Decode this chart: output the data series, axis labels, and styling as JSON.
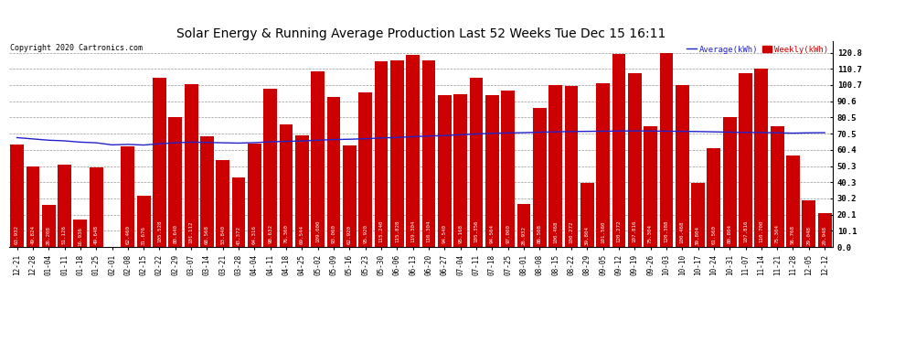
{
  "title": "Solar Energy & Running Average Production Last 52 Weeks Tue Dec 15 16:11",
  "copyright": "Copyright 2020 Cartronics.com",
  "legend_avg": "Average(kWh)",
  "legend_weekly": "Weekly(kWh)",
  "categories": [
    "12-21",
    "12-28",
    "01-04",
    "01-11",
    "01-18",
    "01-25",
    "02-01",
    "02-08",
    "02-15",
    "02-22",
    "02-29",
    "03-07",
    "03-14",
    "03-21",
    "03-28",
    "04-04",
    "04-11",
    "04-18",
    "04-25",
    "05-02",
    "05-09",
    "05-16",
    "05-23",
    "05-30",
    "06-06",
    "06-13",
    "06-20",
    "06-27",
    "07-04",
    "07-11",
    "07-18",
    "07-25",
    "08-01",
    "08-08",
    "08-15",
    "08-22",
    "08-29",
    "09-05",
    "09-12",
    "09-19",
    "09-26",
    "10-03",
    "10-10",
    "10-17",
    "10-24",
    "10-31",
    "11-07",
    "11-14",
    "11-21",
    "11-28",
    "12-05",
    "12-12"
  ],
  "bar_values": [
    63.932,
    49.824,
    26.208,
    51.126,
    16.936,
    49.648,
    0.096,
    62.46,
    31.676,
    105.528,
    80.64,
    101.112,
    68.568,
    53.84,
    43.372,
    64.316,
    98.632,
    76.36,
    69.544,
    109.0,
    93.06,
    62.92,
    95.92,
    115.24,
    115.828,
    119.304,
    116.304,
    94.54,
    95.168,
    105.356,
    94.564,
    97.0,
    26.932,
    86.508,
    100.468,
    100.272,
    39.804,
    101.56,
    120.272,
    107.816,
    75.304,
    120.388,
    100.468,
    39.804,
    61.56,
    80.804,
    107.816,
    110.7,
    75.304,
    56.768,
    29.048,
    20.948
  ],
  "avg_values": [
    68.0,
    67.2,
    66.4,
    66.0,
    65.2,
    64.8,
    63.5,
    63.8,
    63.4,
    64.2,
    64.8,
    65.2,
    65.0,
    64.8,
    64.6,
    64.9,
    65.4,
    65.7,
    65.9,
    66.4,
    66.8,
    67.0,
    67.3,
    67.8,
    68.1,
    68.6,
    69.0,
    69.3,
    69.8,
    70.3,
    70.7,
    70.9,
    71.1,
    71.4,
    71.6,
    71.8,
    71.9,
    72.0,
    72.1,
    72.2,
    72.1,
    72.0,
    71.9,
    71.8,
    71.6,
    71.4,
    71.2,
    71.2,
    71.0,
    70.8,
    71.0,
    71.1
  ],
  "bar_color": "#cc0000",
  "avg_line_color": "#2222cc",
  "background_color": "#ffffff",
  "grid_color": "#999999",
  "title_fontsize": 10,
  "copyright_fontsize": 6,
  "tick_fontsize": 5.5,
  "label_fontsize": 4.2,
  "ytick_values": [
    0.0,
    10.1,
    20.1,
    30.2,
    40.3,
    50.3,
    60.4,
    70.5,
    80.5,
    90.6,
    100.7,
    110.7,
    120.8
  ],
  "ymax": 128
}
